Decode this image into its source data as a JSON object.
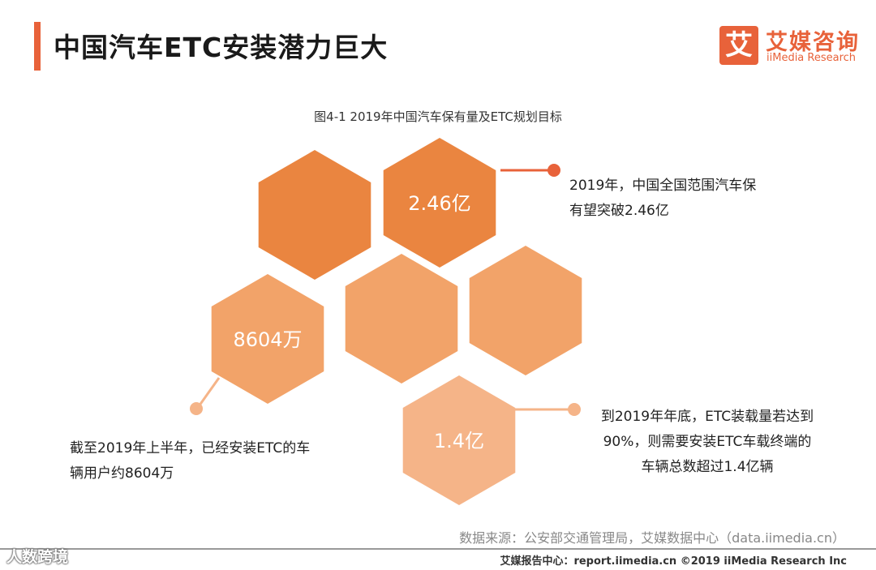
{
  "header": {
    "title": "中国汽车ETC安装潜力巨大",
    "logo_mark": "艾",
    "logo_cn": "艾媒咨询",
    "logo_en": "iiMedia Research"
  },
  "chart_data": {
    "type": "infographic",
    "title": "图4-1 2019年中国汽车保有量及ETC规划目标",
    "items": [
      {
        "value": 2.46,
        "unit": "亿",
        "label": "2.46亿",
        "note": "2019年，中国全国范围汽车保有望突破2.46亿"
      },
      {
        "value": 8604,
        "unit": "万",
        "label": "8604万",
        "note": "截至2019年上半年，已经安装ETC的车辆用户约8604万"
      },
      {
        "value": 1.4,
        "unit": "亿",
        "label": "1.4亿",
        "note": "到2019年年底，ETC装载量若达到90%，则需要安装ETC车载终端的车辆总数超过1.4亿辆"
      }
    ],
    "colors": {
      "dark": "#ea8540",
      "mid": "#f2a369",
      "light": "#f5b488",
      "accent": "#e8623a"
    }
  },
  "notes": {
    "n1_line1": "2019年，中国全国范围汽车保",
    "n1_line2": "有望突破2.46亿",
    "n2_line1": "截至2019年上半年，已经安装ETC的车",
    "n2_line2": "辆用户约8604万",
    "n3_line1": "到2019年年底，ETC装载量若达到",
    "n3_line2": "90%，则需要安装ETC车载终端的",
    "n3_line3": "车辆总数超过1.4亿辆"
  },
  "source": "数据来源：公安部交通管理局，艾媒数据中心（data.iimedia.cn）",
  "footer": "艾媒报告中心：report.iimedia.cn ©2019 iiMedia Research Inc",
  "watermark": "人数跨境"
}
